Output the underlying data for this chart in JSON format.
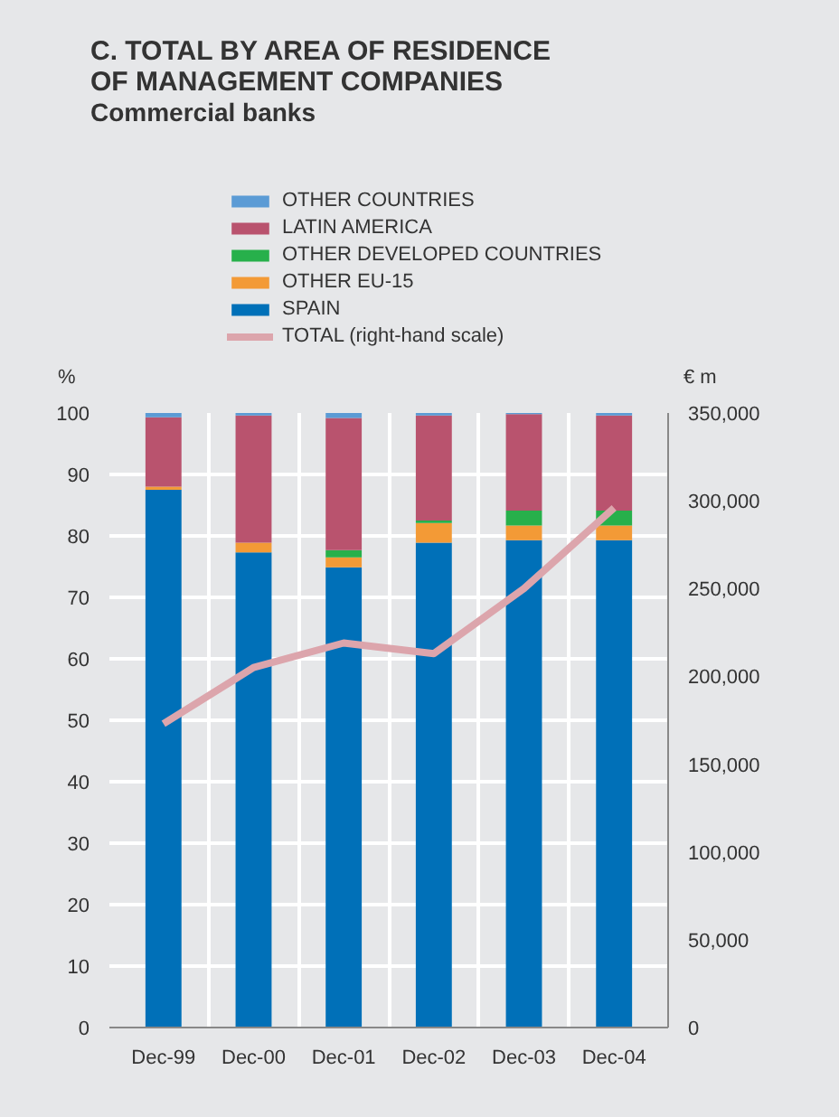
{
  "chart_data": {
    "type": "bar",
    "title": "C. TOTAL BY AREA OF RESIDENCE\nOF MANAGEMENT COMPANIES",
    "subtitle": "Commercial banks",
    "ylabel": "%",
    "y2label": "€ m",
    "stacked": true,
    "categories": [
      "Dec-99",
      "Dec-00",
      "Dec-01",
      "Dec-02",
      "Dec-03",
      "Dec-04"
    ],
    "series": [
      {
        "name": "SPAIN",
        "color": "#0070b8",
        "values": [
          87.5,
          77.3,
          74.9,
          78.9,
          79.3,
          79.3
        ]
      },
      {
        "name": "OTHER EU-15",
        "color": "#f39a36",
        "values": [
          0.5,
          1.6,
          1.6,
          3.2,
          2.4,
          2.4
        ]
      },
      {
        "name": "OTHER DEVELOPED COUNTRIES",
        "color": "#27b04b",
        "values": [
          0,
          0,
          1.2,
          0.4,
          2.4,
          2.4
        ]
      },
      {
        "name": "LATIN AMERICA",
        "color": "#b9536e",
        "values": [
          11.3,
          20.7,
          21.5,
          17.1,
          15.7,
          15.5
        ]
      },
      {
        "name": "OTHER COUNTRIES",
        "color": "#5b9bd5",
        "values": [
          0.7,
          0.4,
          0.8,
          0.8,
          0.2,
          0.4
        ]
      },
      {
        "name": "TOTAL (right-hand scale)",
        "type": "line",
        "axis": "y2",
        "color": "#dca5ac",
        "values": [
          173000,
          205000,
          219000,
          213000,
          250000,
          296000
        ]
      }
    ],
    "ylim": [
      0,
      100
    ],
    "yticks": [
      0,
      10,
      20,
      30,
      40,
      50,
      60,
      70,
      80,
      90,
      100
    ],
    "y2lim": [
      0,
      350000
    ],
    "y2ticks": [
      {
        "value": 0,
        "label": "0"
      },
      {
        "value": 50000,
        "label": "50,000"
      },
      {
        "value": 100000,
        "label": "100,000"
      },
      {
        "value": 150000,
        "label": "150,000"
      },
      {
        "value": 200000,
        "label": "200,000"
      },
      {
        "value": 250000,
        "label": "250,000"
      },
      {
        "value": 300000,
        "label": "300,000"
      },
      {
        "value": 350000,
        "label": "350,000"
      }
    ],
    "grid": true,
    "legend": "top"
  }
}
